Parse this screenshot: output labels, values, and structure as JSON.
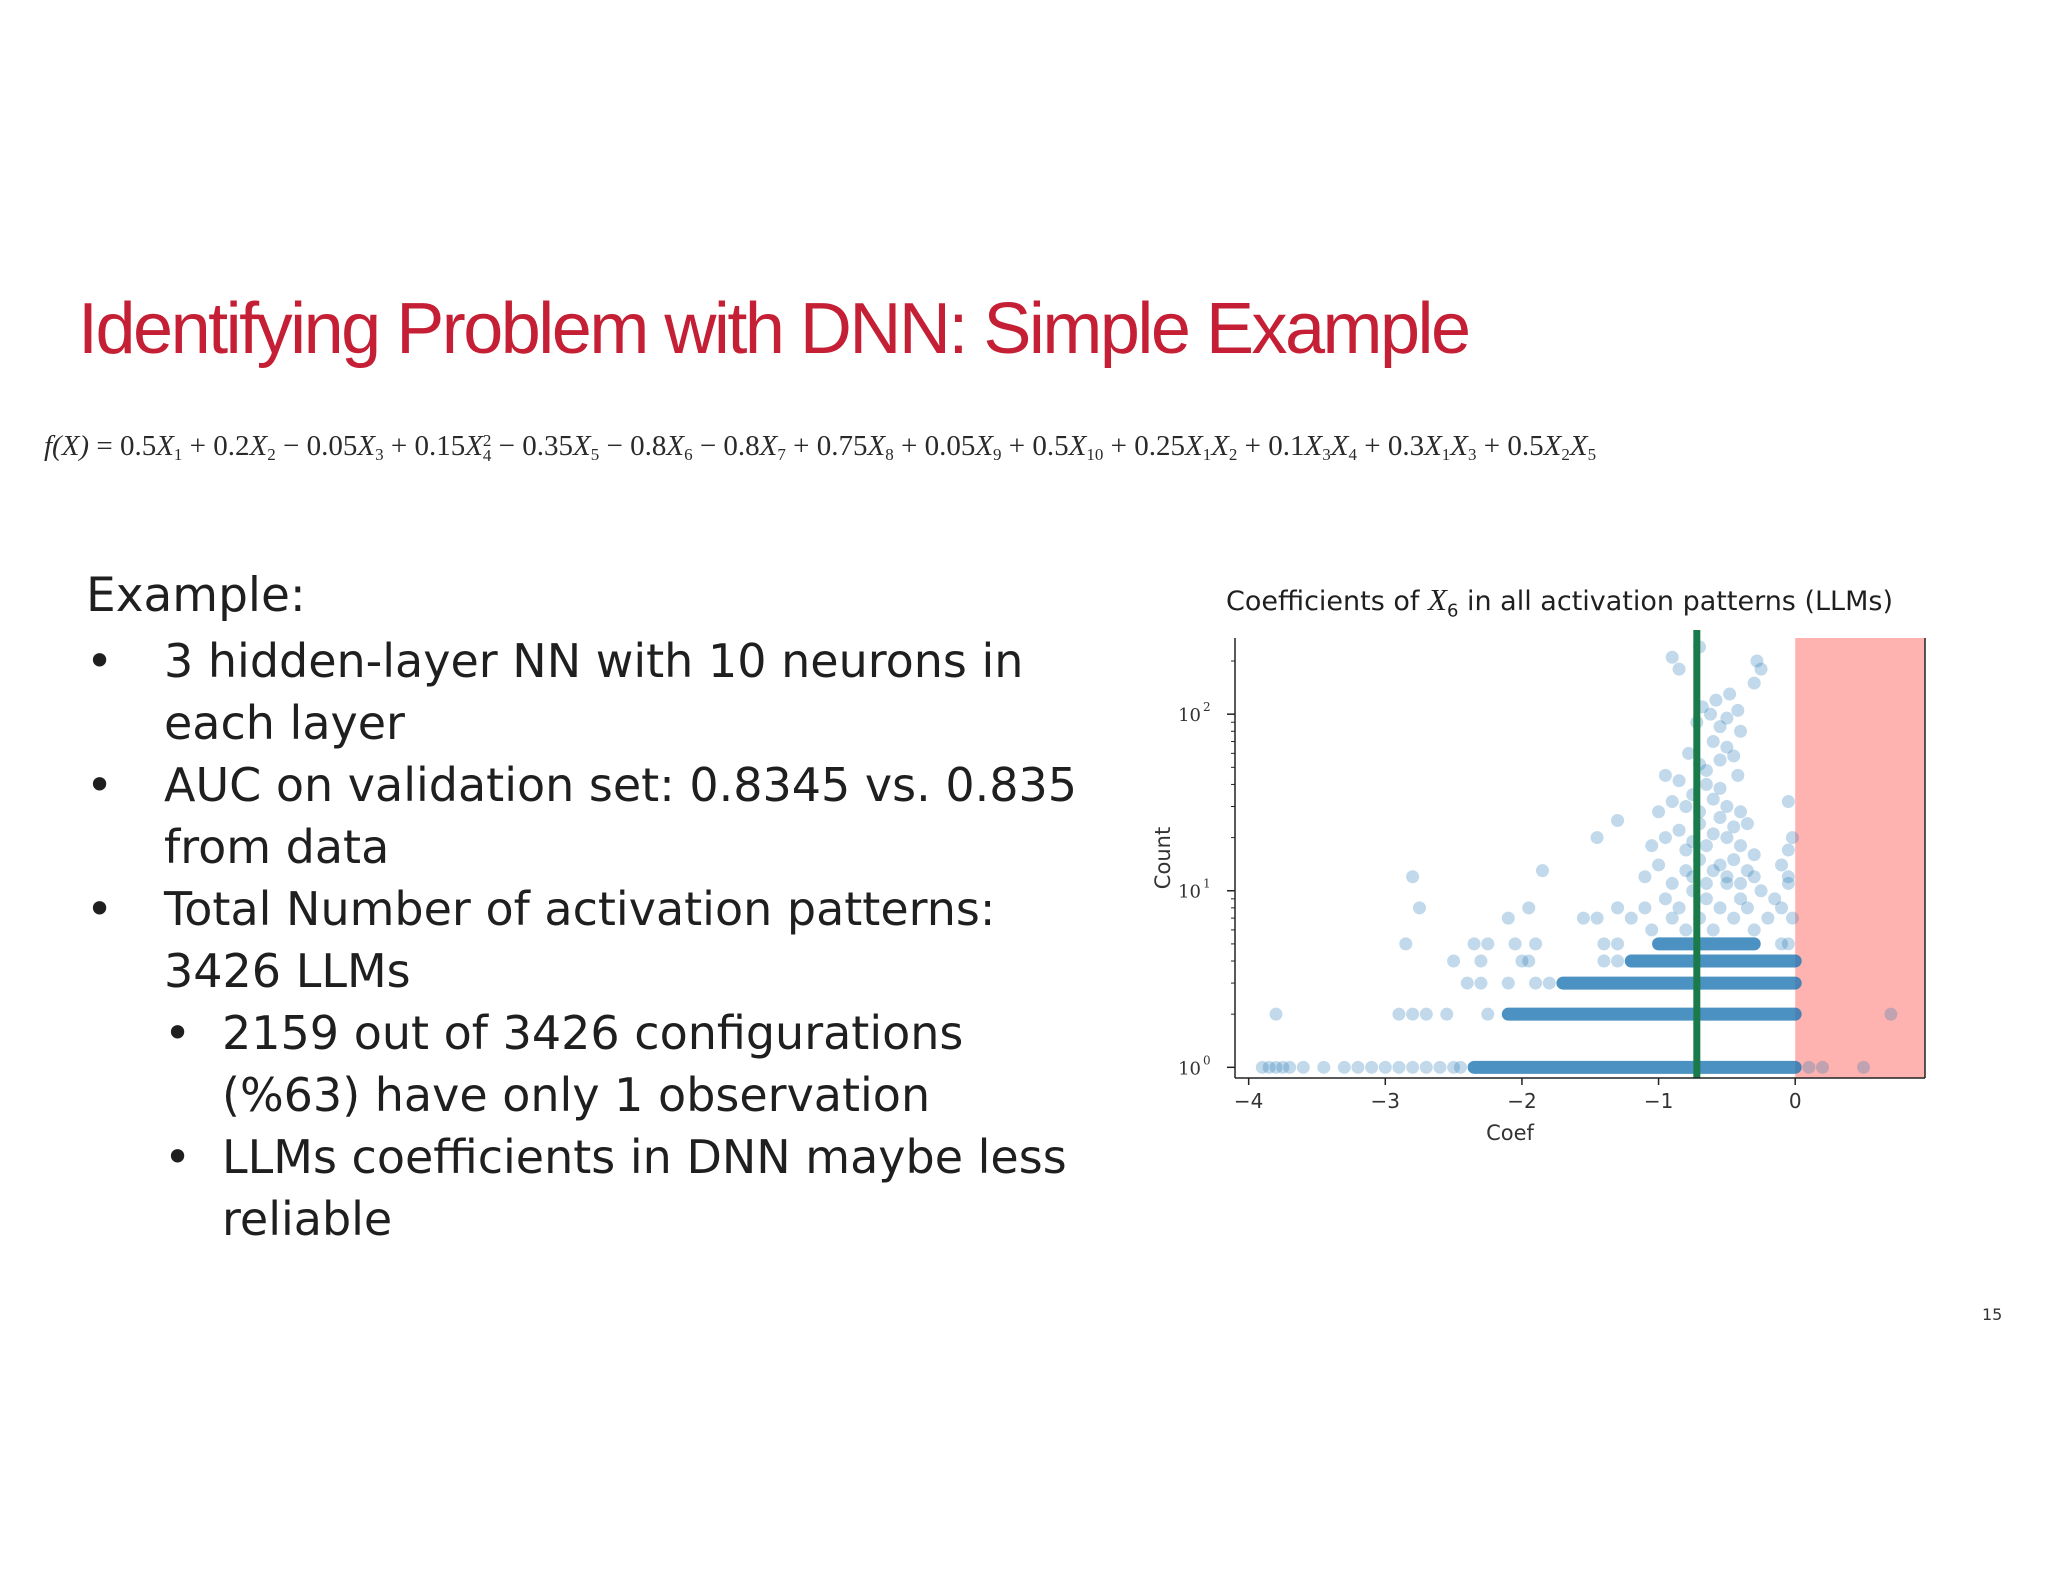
{
  "slide": {
    "title": "Identifying Problem with DNN: Simple Example",
    "page_number": "15"
  },
  "formula": {
    "lhs": "f(X)",
    "terms": [
      {
        "op": "=",
        "coef": "0.5",
        "vars": [
          [
            "X",
            "1",
            ""
          ]
        ]
      },
      {
        "op": "+",
        "coef": "0.2",
        "vars": [
          [
            "X",
            "2",
            ""
          ]
        ]
      },
      {
        "op": "−",
        "coef": "0.05",
        "vars": [
          [
            "X",
            "3",
            ""
          ]
        ]
      },
      {
        "op": "+",
        "coef": "0.15",
        "vars": [
          [
            "X",
            "4",
            "2"
          ]
        ]
      },
      {
        "op": "−",
        "coef": "0.35",
        "vars": [
          [
            "X",
            "5",
            ""
          ]
        ]
      },
      {
        "op": "−",
        "coef": "0.8",
        "vars": [
          [
            "X",
            "6",
            ""
          ]
        ]
      },
      {
        "op": "−",
        "coef": "0.8",
        "vars": [
          [
            "X",
            "7",
            ""
          ]
        ]
      },
      {
        "op": "+",
        "coef": "0.75",
        "vars": [
          [
            "X",
            "8",
            ""
          ]
        ]
      },
      {
        "op": "+",
        "coef": "0.05",
        "vars": [
          [
            "X",
            "9",
            ""
          ]
        ]
      },
      {
        "op": "+",
        "coef": "0.5",
        "vars": [
          [
            "X",
            "10",
            ""
          ]
        ]
      },
      {
        "op": "+",
        "coef": "0.25",
        "vars": [
          [
            "X",
            "1",
            ""
          ],
          [
            "X",
            "2",
            ""
          ]
        ]
      },
      {
        "op": "+",
        "coef": "0.1",
        "vars": [
          [
            "X",
            "3",
            ""
          ],
          [
            "X",
            "4",
            ""
          ]
        ]
      },
      {
        "op": "+",
        "coef": "0.3",
        "vars": [
          [
            "X",
            "1",
            ""
          ],
          [
            "X",
            "3",
            ""
          ]
        ]
      },
      {
        "op": "+",
        "coef": "0.5",
        "vars": [
          [
            "X",
            "2",
            ""
          ],
          [
            "X",
            "5",
            ""
          ]
        ]
      }
    ]
  },
  "content": {
    "heading": "Example:",
    "bullet_symbol": "•",
    "bullets": [
      {
        "level": 1,
        "text": "3 hidden-layer NN with 10 neurons in each layer"
      },
      {
        "level": 1,
        "text": "AUC on validation set: 0.8345 vs. 0.835 from data"
      },
      {
        "level": 1,
        "text": "Total Number of activation patterns: 3426 LLMs"
      },
      {
        "level": 2,
        "text": "2159 out of 3426 configurations (%63) have only 1 observation"
      },
      {
        "level": 2,
        "text": "LLMs coefficients in DNN maybe less reliable"
      }
    ]
  },
  "chart_data": {
    "type": "scatter",
    "title_prefix": "Coefficients of ",
    "title_var": "X",
    "title_sub": "6",
    "title_suffix": " in all activation patterns (LLMs)",
    "xlabel": "Coef",
    "ylabel": "Count",
    "xlim": [
      -4.1,
      0.95
    ],
    "ylim": [
      0.87,
      270
    ],
    "yscale": "log",
    "xticks": [
      -4,
      -3,
      -2,
      -1,
      0
    ],
    "xtick_labels": [
      "−4",
      "−3",
      "−2",
      "−1",
      "0"
    ],
    "yticks": [
      1,
      10,
      100
    ],
    "ytick_bases": [
      "10",
      "10",
      "10"
    ],
    "ytick_exponents": [
      "0",
      "1",
      "2"
    ],
    "point_color": "#1f77b4",
    "point_alpha": 0.28,
    "vline": {
      "x": -0.72,
      "color": "#1a7a4a"
    },
    "shaded_region": {
      "x_start": 0,
      "x_end": 0.95,
      "color": "#ffb3b0"
    },
    "dense_rows": [
      {
        "y": 1,
        "x_start": -2.35,
        "x_end": 0
      },
      {
        "y": 2,
        "x_start": -2.1,
        "x_end": 0
      },
      {
        "y": 3,
        "x_start": -1.7,
        "x_end": 0
      },
      {
        "y": 4,
        "x_start": -1.2,
        "x_end": 0
      },
      {
        "y": 5,
        "x_start": -1.0,
        "x_end": -0.3
      }
    ],
    "points": [
      [
        -3.9,
        1
      ],
      [
        -3.85,
        1
      ],
      [
        -3.8,
        1
      ],
      [
        -3.75,
        1
      ],
      [
        -3.7,
        1
      ],
      [
        -3.6,
        1
      ],
      [
        -3.45,
        1
      ],
      [
        -3.3,
        1
      ],
      [
        -3.2,
        1
      ],
      [
        -3.1,
        1
      ],
      [
        -3.0,
        1
      ],
      [
        -2.9,
        1
      ],
      [
        -2.8,
        1
      ],
      [
        -2.7,
        1
      ],
      [
        -2.6,
        1
      ],
      [
        -2.5,
        1
      ],
      [
        -2.45,
        1
      ],
      [
        0.2,
        1
      ],
      [
        0.5,
        1
      ],
      [
        0.1,
        1
      ],
      [
        -3.8,
        2
      ],
      [
        -2.9,
        2
      ],
      [
        -2.8,
        2
      ],
      [
        -2.7,
        2
      ],
      [
        -2.55,
        2
      ],
      [
        -2.25,
        2
      ],
      [
        0.7,
        2
      ],
      [
        -2.4,
        3
      ],
      [
        -2.3,
        3
      ],
      [
        -2.1,
        3
      ],
      [
        -1.9,
        3
      ],
      [
        -1.8,
        3
      ],
      [
        -2.5,
        4
      ],
      [
        -2.3,
        4
      ],
      [
        -2.0,
        4
      ],
      [
        -1.95,
        4
      ],
      [
        -1.4,
        4
      ],
      [
        -1.3,
        4
      ],
      [
        -2.85,
        5
      ],
      [
        -2.35,
        5
      ],
      [
        -2.25,
        5
      ],
      [
        -2.05,
        5
      ],
      [
        -1.9,
        5
      ],
      [
        -1.4,
        5
      ],
      [
        -1.3,
        5
      ],
      [
        -0.1,
        5
      ],
      [
        -0.05,
        5
      ],
      [
        -2.75,
        8
      ],
      [
        -2.1,
        7
      ],
      [
        -1.95,
        8
      ],
      [
        -1.45,
        7
      ],
      [
        -1.55,
        7
      ],
      [
        -1.3,
        8
      ],
      [
        -1.2,
        7
      ],
      [
        -1.1,
        8
      ],
      [
        -1.05,
        6
      ],
      [
        -0.95,
        9
      ],
      [
        -0.9,
        7
      ],
      [
        -0.85,
        8
      ],
      [
        -0.8,
        6
      ],
      [
        -0.75,
        10
      ],
      [
        -0.7,
        7
      ],
      [
        -0.65,
        9
      ],
      [
        -0.6,
        6
      ],
      [
        -0.55,
        8
      ],
      [
        -0.5,
        11
      ],
      [
        -0.45,
        7
      ],
      [
        -0.4,
        9
      ],
      [
        -0.35,
        8
      ],
      [
        -0.3,
        6
      ],
      [
        -0.25,
        10
      ],
      [
        -0.2,
        7
      ],
      [
        -0.15,
        9
      ],
      [
        -0.1,
        8
      ],
      [
        -0.05,
        11
      ],
      [
        -0.02,
        7
      ],
      [
        -2.8,
        12
      ],
      [
        -1.85,
        13
      ],
      [
        -1.1,
        12
      ],
      [
        -1.0,
        14
      ],
      [
        -0.9,
        11
      ],
      [
        -0.8,
        13
      ],
      [
        -0.75,
        12
      ],
      [
        -0.7,
        15
      ],
      [
        -0.65,
        11
      ],
      [
        -0.6,
        13
      ],
      [
        -0.55,
        14
      ],
      [
        -0.5,
        12
      ],
      [
        -0.45,
        15
      ],
      [
        -0.4,
        11
      ],
      [
        -0.35,
        13
      ],
      [
        -0.3,
        12
      ],
      [
        -0.1,
        14
      ],
      [
        -0.05,
        12
      ],
      [
        -1.45,
        20
      ],
      [
        -1.05,
        18
      ],
      [
        -0.95,
        20
      ],
      [
        -0.85,
        22
      ],
      [
        -0.8,
        17
      ],
      [
        -0.75,
        19
      ],
      [
        -0.7,
        24
      ],
      [
        -0.65,
        18
      ],
      [
        -0.6,
        21
      ],
      [
        -0.55,
        26
      ],
      [
        -0.5,
        20
      ],
      [
        -0.45,
        23
      ],
      [
        -0.4,
        18
      ],
      [
        -0.3,
        16
      ],
      [
        -0.05,
        17
      ],
      [
        -0.02,
        20
      ],
      [
        -1.3,
        25
      ],
      [
        -1.0,
        28
      ],
      [
        -0.9,
        32
      ],
      [
        -0.8,
        30
      ],
      [
        -0.75,
        35
      ],
      [
        -0.7,
        28
      ],
      [
        -0.65,
        40
      ],
      [
        -0.6,
        33
      ],
      [
        -0.55,
        38
      ],
      [
        -0.5,
        30
      ],
      [
        -0.4,
        28
      ],
      [
        -0.35,
        24
      ],
      [
        -0.05,
        32
      ],
      [
        -0.95,
        45
      ],
      [
        -0.85,
        42
      ],
      [
        -0.78,
        60
      ],
      [
        -0.7,
        52
      ],
      [
        -0.65,
        48
      ],
      [
        -0.6,
        70
      ],
      [
        -0.55,
        55
      ],
      [
        -0.5,
        65
      ],
      [
        -0.45,
        58
      ],
      [
        -0.42,
        45
      ],
      [
        -0.72,
        90
      ],
      [
        -0.68,
        110
      ],
      [
        -0.62,
        100
      ],
      [
        -0.58,
        120
      ],
      [
        -0.55,
        85
      ],
      [
        -0.5,
        95
      ],
      [
        -0.48,
        130
      ],
      [
        -0.42,
        105
      ],
      [
        -0.4,
        80
      ],
      [
        -0.9,
        210
      ],
      [
        -0.85,
        180
      ],
      [
        -0.7,
        240
      ],
      [
        -0.3,
        150
      ],
      [
        -0.28,
        200
      ],
      [
        -0.25,
        180
      ]
    ]
  }
}
